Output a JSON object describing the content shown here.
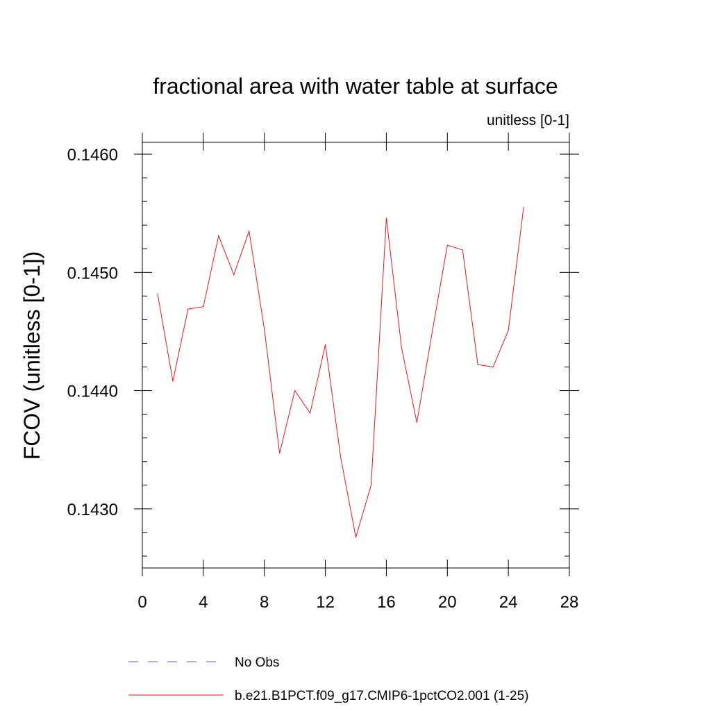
{
  "chart_data": {
    "type": "line",
    "title": "fractional area with water table at surface",
    "subtitle": "unitless [0-1]",
    "xlabel": "",
    "ylabel": "FCOV  (unitless [0-1])",
    "xlim": [
      0,
      28
    ],
    "ylim": [
      0.1425,
      0.1461
    ],
    "xticks": [
      0,
      4,
      8,
      12,
      16,
      20,
      24,
      28
    ],
    "xtick_labels": [
      "0",
      "4",
      "8",
      "12",
      "16",
      "20",
      "24",
      "28"
    ],
    "yticks": [
      0.143,
      0.144,
      0.145,
      0.146
    ],
    "ytick_labels": [
      "0.1430",
      "0.1440",
      "0.1450",
      "0.1460"
    ],
    "grid": false,
    "legend_position": "bottom",
    "series": [
      {
        "name": "No Obs",
        "color": "#6b5bd6",
        "dash": "dashed",
        "x": [],
        "y": []
      },
      {
        "name": "b.e21.B1PCT.f09_g17.CMIP6-1pctCO2.001 (1-25)",
        "color": "#e8141b",
        "dash": "solid",
        "x": [
          1,
          2,
          3,
          4,
          5,
          6,
          7,
          8,
          9,
          10,
          11,
          12,
          13,
          14,
          15,
          16,
          17,
          18,
          19,
          20,
          21,
          22,
          23,
          24,
          25
        ],
        "y": [
          0.14482,
          0.14408,
          0.14469,
          0.14471,
          0.14531,
          0.14498,
          0.14535,
          0.14452,
          0.14347,
          0.144,
          0.14381,
          0.14439,
          0.14344,
          0.14276,
          0.1432,
          0.14546,
          0.14436,
          0.14373,
          0.14449,
          0.14523,
          0.14519,
          0.14422,
          0.1442,
          0.14451,
          0.14555
        ]
      }
    ]
  }
}
